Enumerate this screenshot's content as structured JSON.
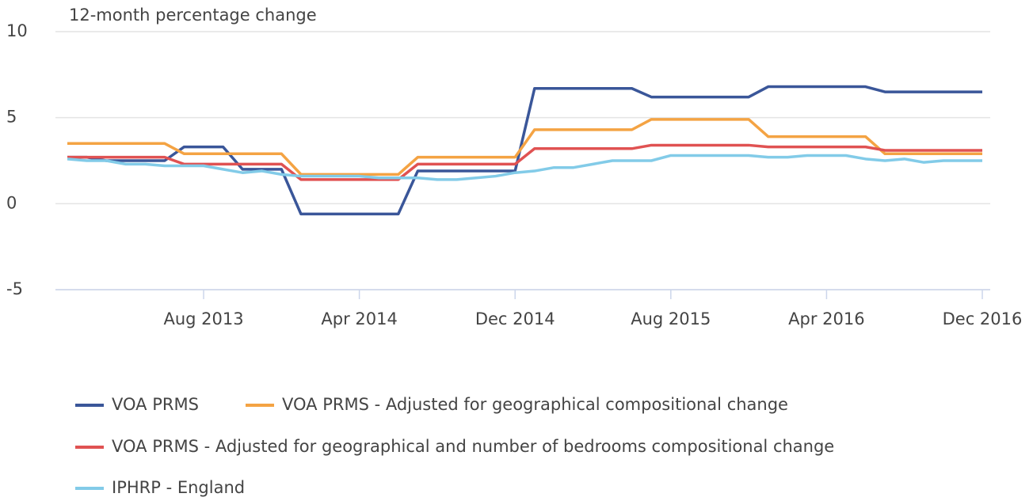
{
  "chart_data": {
    "type": "line",
    "y_label": "12-month percentage change",
    "categories": [
      null,
      null,
      null,
      null,
      null,
      null,
      null,
      "Aug 2013",
      null,
      null,
      null,
      null,
      null,
      null,
      null,
      "Apr 2014",
      null,
      null,
      null,
      null,
      null,
      null,
      null,
      "Dec 2014",
      null,
      null,
      null,
      null,
      null,
      null,
      null,
      "Aug 2015",
      null,
      null,
      null,
      null,
      null,
      null,
      null,
      "Apr 2016",
      null,
      null,
      null,
      null,
      null,
      null,
      null,
      "Dec 2016"
    ],
    "series": [
      {
        "name": "VOA PRMS",
        "color": "#3a5699",
        "values": [
          2.7,
          2.7,
          2.5,
          2.5,
          2.5,
          2.5,
          3.3,
          3.3,
          3.3,
          2.0,
          2.0,
          2.0,
          -0.6,
          -0.6,
          -0.6,
          -0.6,
          -0.6,
          -0.6,
          1.9,
          1.9,
          1.9,
          1.9,
          1.9,
          1.9,
          6.7,
          6.7,
          6.7,
          6.7,
          6.7,
          6.7,
          6.2,
          6.2,
          6.2,
          6.2,
          6.2,
          6.2,
          6.8,
          6.8,
          6.8,
          6.8,
          6.8,
          6.8,
          6.5,
          6.5,
          6.5,
          6.5,
          6.5,
          6.5
        ]
      },
      {
        "name": "VOA PRMS - Adjusted for geographical compositional change",
        "color": "#f4a343",
        "values": [
          3.5,
          3.5,
          3.5,
          3.5,
          3.5,
          3.5,
          2.9,
          2.9,
          2.9,
          2.9,
          2.9,
          2.9,
          1.7,
          1.7,
          1.7,
          1.7,
          1.7,
          1.7,
          2.7,
          2.7,
          2.7,
          2.7,
          2.7,
          2.7,
          4.3,
          4.3,
          4.3,
          4.3,
          4.3,
          4.3,
          4.9,
          4.9,
          4.9,
          4.9,
          4.9,
          4.9,
          3.9,
          3.9,
          3.9,
          3.9,
          3.9,
          3.9,
          2.9,
          2.9,
          2.9,
          2.9,
          2.9,
          2.9
        ]
      },
      {
        "name": "VOA PRMS - Adjusted for geographical and number of bedrooms compositional change",
        "color": "#e05252",
        "values": [
          2.7,
          2.7,
          2.7,
          2.7,
          2.7,
          2.7,
          2.3,
          2.3,
          2.3,
          2.3,
          2.3,
          2.3,
          1.4,
          1.4,
          1.4,
          1.4,
          1.4,
          1.4,
          2.3,
          2.3,
          2.3,
          2.3,
          2.3,
          2.3,
          3.2,
          3.2,
          3.2,
          3.2,
          3.2,
          3.2,
          3.4,
          3.4,
          3.4,
          3.4,
          3.4,
          3.4,
          3.3,
          3.3,
          3.3,
          3.3,
          3.3,
          3.3,
          3.1,
          3.1,
          3.1,
          3.1,
          3.1,
          3.1
        ]
      },
      {
        "name": "IPHRP - England",
        "color": "#82cbe8",
        "values": [
          2.6,
          2.5,
          2.5,
          2.3,
          2.3,
          2.2,
          2.2,
          2.2,
          2.0,
          1.8,
          1.9,
          1.7,
          1.6,
          1.6,
          1.6,
          1.6,
          1.5,
          1.5,
          1.5,
          1.4,
          1.4,
          1.5,
          1.6,
          1.8,
          1.9,
          2.1,
          2.1,
          2.3,
          2.5,
          2.5,
          2.5,
          2.8,
          2.8,
          2.8,
          2.8,
          2.8,
          2.7,
          2.7,
          2.8,
          2.8,
          2.8,
          2.6,
          2.5,
          2.6,
          2.4,
          2.5,
          2.5,
          2.5
        ]
      }
    ],
    "ylim": [
      -5,
      10
    ],
    "yticks": [
      -5,
      0,
      5,
      10
    ],
    "grid": true
  }
}
